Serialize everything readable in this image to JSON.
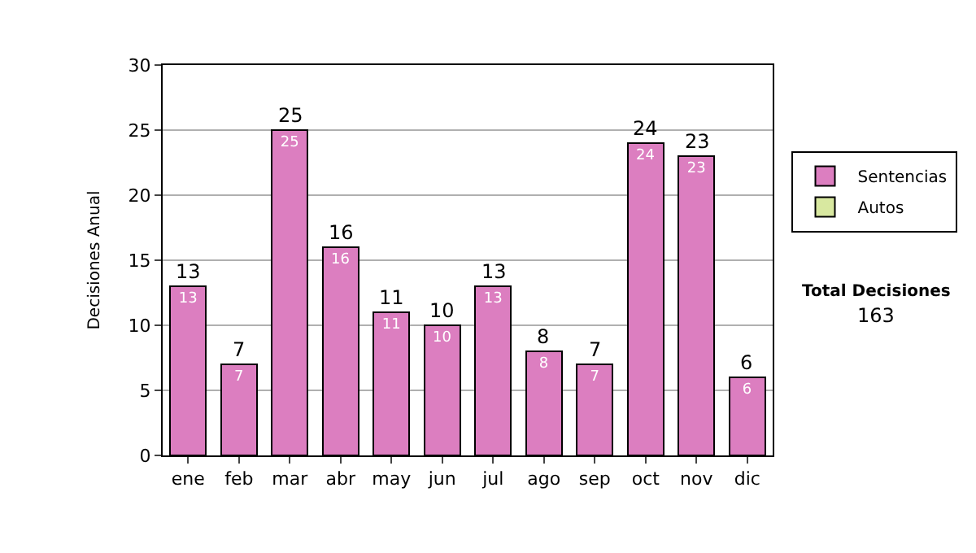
{
  "chart_data": {
    "type": "bar",
    "stacked": true,
    "ylabel": "Decisiones Anual",
    "categories": [
      "ene",
      "feb",
      "mar",
      "abr",
      "may",
      "jun",
      "jul",
      "ago",
      "sep",
      "oct",
      "nov",
      "dic"
    ],
    "series": [
      {
        "name": "Sentencias",
        "color": "#dc7ec0",
        "values": [
          13,
          7,
          25,
          16,
          11,
          10,
          13,
          8,
          7,
          24,
          23,
          6
        ],
        "value_labels": [
          "13",
          "7",
          "25",
          "16",
          "11",
          "10",
          "13",
          "8",
          "7",
          "24",
          "23",
          "6"
        ]
      },
      {
        "name": "Autos",
        "color": "#d8e8a0",
        "values": [
          null,
          null,
          null,
          null,
          null,
          null,
          null,
          null,
          null,
          null,
          null,
          null
        ]
      }
    ],
    "totals": [
      "13",
      "7",
      "25",
      "16",
      "11",
      "10",
      "13",
      "8",
      "7",
      "24",
      "23",
      "6"
    ],
    "ylim": [
      0,
      30
    ],
    "yticks": [
      0,
      5,
      10,
      15,
      20,
      25,
      30
    ],
    "grid": "y",
    "legend": "right",
    "annotations": [
      "Total Decisiones",
      "163"
    ]
  }
}
